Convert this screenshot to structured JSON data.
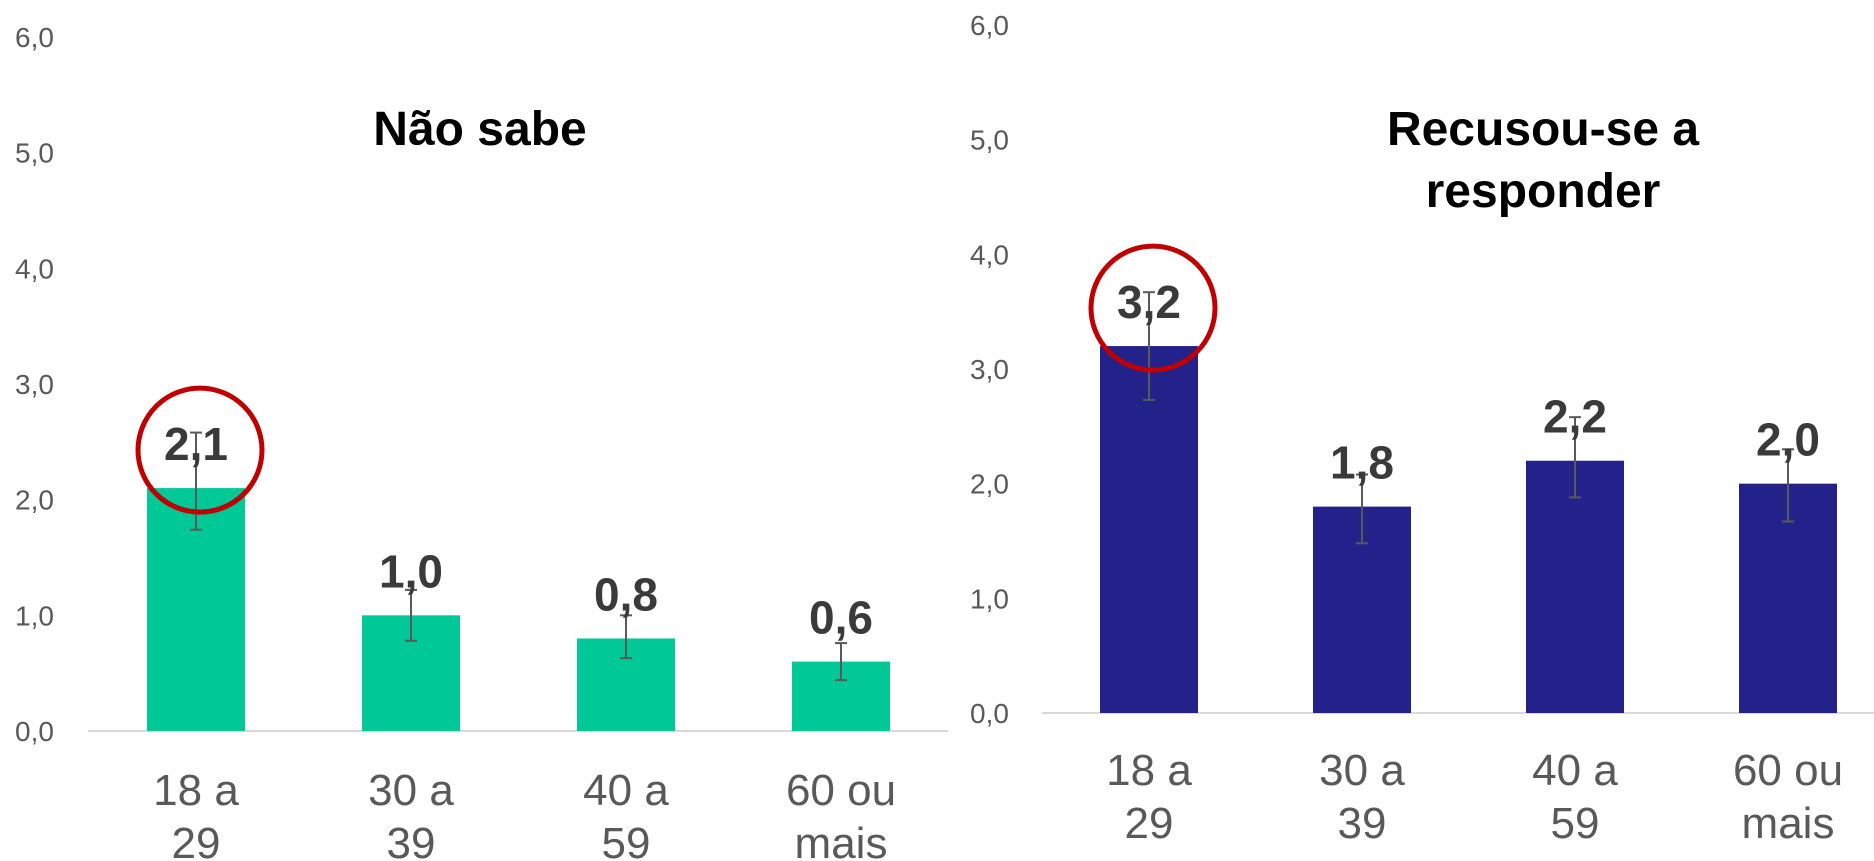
{
  "chart_data": [
    {
      "type": "bar",
      "title": "Não sabe",
      "categories": [
        "18 a 29",
        "30 a 39",
        "40 a 59",
        "60 ou mais"
      ],
      "values": [
        2.1,
        1.0,
        0.8,
        0.6
      ],
      "value_labels": [
        "2,1",
        "1,0",
        "0,8",
        "0,6"
      ],
      "error_low": [
        1.74,
        0.78,
        0.63,
        0.44
      ],
      "error_high": [
        2.58,
        1.22,
        1.0,
        0.76
      ],
      "ylim": [
        0,
        6
      ],
      "yticks": [
        "0,0",
        "1,0",
        "2,0",
        "3,0",
        "4,0",
        "5,0",
        "6,0"
      ],
      "bar_color": "#00c896",
      "highlight_index": 0,
      "highlight_color": "#c00000"
    },
    {
      "type": "bar",
      "title": "Recusou-se a responder",
      "categories": [
        "18 a 29",
        "30 a 39",
        "40 a 59",
        "60 ou mais"
      ],
      "values": [
        3.2,
        1.8,
        2.2,
        2.0
      ],
      "value_labels": [
        "3,2",
        "1,8",
        "2,2",
        "2,0"
      ],
      "error_low": [
        2.73,
        1.48,
        1.88,
        1.67
      ],
      "error_high": [
        3.67,
        2.08,
        2.58,
        2.3
      ],
      "ylim": [
        0,
        6
      ],
      "yticks": [
        "0,0",
        "1,0",
        "2,0",
        "3,0",
        "4,0",
        "5,0",
        "6,0"
      ],
      "bar_color": "#22228a",
      "highlight_index": 0,
      "highlight_color": "#c00000"
    }
  ]
}
